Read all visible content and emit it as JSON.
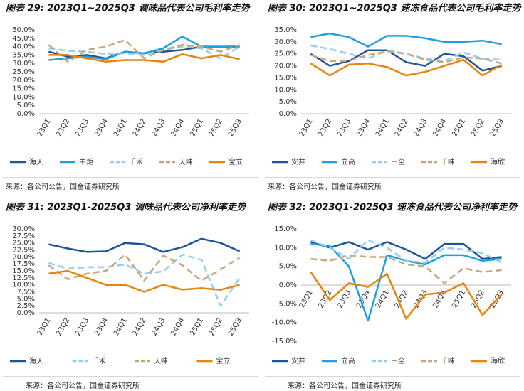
{
  "chart_data": [
    {
      "type": "line",
      "title": "图表 29: 2023Q1~2025Q3 调味品代表公司毛利率走势",
      "source": "来源：各公司公告，国金证券研究所",
      "categories": [
        "23Q1",
        "23Q2",
        "23Q3",
        "23Q4",
        "24Q1",
        "24Q2",
        "24Q3",
        "24Q4",
        "25Q1",
        "25Q2",
        "25Q3"
      ],
      "ylim": [
        0,
        50
      ],
      "yticks": [
        {
          "value": 0,
          "label": "0.0%"
        },
        {
          "value": 5,
          "label": "5.0%"
        },
        {
          "value": 10,
          "label": "10.0%"
        },
        {
          "value": 15,
          "label": "15.0%"
        },
        {
          "value": 20,
          "label": "20.0%"
        },
        {
          "value": 25,
          "label": "25.0%"
        },
        {
          "value": 30,
          "label": "30.0%"
        },
        {
          "value": 35,
          "label": "35.0%"
        },
        {
          "value": 40,
          "label": "40.0%"
        },
        {
          "value": 45,
          "label": "45.0%"
        },
        {
          "value": 50,
          "label": "50.0%"
        }
      ],
      "legend": "bottom",
      "series": [
        {
          "name": "海天",
          "color": "#1f5597",
          "dashed": false,
          "values": [
            37,
            34,
            35,
            33,
            37,
            36,
            37,
            38,
            40,
            40,
            40
          ]
        },
        {
          "name": "中炬",
          "color": "#1ea0e0",
          "dashed": false,
          "values": [
            32,
            33,
            34,
            32.5,
            37,
            36,
            39,
            46,
            40,
            40,
            39.5
          ]
        },
        {
          "name": "千禾",
          "color": "#8fd0f0",
          "dashed": true,
          "values": [
            39,
            37.5,
            37,
            35.5,
            36,
            35,
            38,
            40,
            39,
            33,
            40
          ]
        },
        {
          "name": "天味",
          "color": "#c8a878",
          "dashed": true,
          "values": [
            41,
            31,
            38,
            40,
            44,
            33,
            38,
            41,
            40,
            37,
            41
          ]
        },
        {
          "name": "宝立",
          "color": "#e8840c",
          "dashed": false,
          "values": [
            35,
            35,
            33,
            31,
            32,
            32,
            31,
            35.5,
            33,
            35,
            32.5
          ]
        }
      ]
    },
    {
      "type": "line",
      "title": "图表 30: 2023Q1~2025Q3 速冻食品代表公司毛利率走势",
      "source": "来源：各公司公告，国金证券研究所",
      "categories": [
        "23Q1",
        "23Q2",
        "23Q3",
        "23Q4",
        "24Q1",
        "24Q2",
        "24Q3",
        "24Q4",
        "25Q1",
        "25Q2",
        "25Q3"
      ],
      "ylim": [
        0,
        35
      ],
      "yticks": [
        {
          "value": 0,
          "label": "0.0%"
        },
        {
          "value": 5,
          "label": "5.0%"
        },
        {
          "value": 10,
          "label": "10.0%"
        },
        {
          "value": 15,
          "label": "15.0%"
        },
        {
          "value": 20,
          "label": "20.0%"
        },
        {
          "value": 25,
          "label": "25.0%"
        },
        {
          "value": 30,
          "label": "30.0%"
        },
        {
          "value": 35,
          "label": "35.0%"
        }
      ],
      "legend": "bottom",
      "series": [
        {
          "name": "安井",
          "color": "#1f5597",
          "dashed": false,
          "values": [
            25,
            20,
            22,
            26.5,
            26.5,
            21.5,
            20,
            25,
            24,
            18,
            20
          ]
        },
        {
          "name": "立高",
          "color": "#1ea0e0",
          "dashed": false,
          "values": [
            32,
            33.5,
            32,
            28,
            32.5,
            32.5,
            31.5,
            30,
            30,
            30.5,
            29
          ]
        },
        {
          "name": "三全",
          "color": "#8fd0f0",
          "dashed": true,
          "values": [
            28.5,
            27,
            25,
            23,
            26.5,
            25,
            23,
            22,
            25.5,
            23,
            22.5
          ]
        },
        {
          "name": "千味",
          "color": "#c8a878",
          "dashed": true,
          "values": [
            24.5,
            22,
            22,
            24.5,
            26,
            25,
            22.5,
            21.5,
            23.5,
            23,
            21
          ]
        },
        {
          "name": "海欣",
          "color": "#e8840c",
          "dashed": false,
          "values": [
            21,
            16,
            20.5,
            21,
            19.5,
            16,
            17.5,
            20,
            22.5,
            16,
            20.5
          ]
        }
      ]
    },
    {
      "type": "line",
      "title": "图表 31: 2023Q1-2025Q3 调味品代表公司净利率走势",
      "source": "来源：各公司公告，国金证券研究所",
      "categories": [
        "23Q1",
        "23Q2",
        "23Q3",
        "23Q4",
        "24Q1",
        "24Q2",
        "24Q3",
        "24Q4",
        "25Q1",
        "25Q2",
        "25Q3"
      ],
      "ylim": [
        0,
        30
      ],
      "yticks": [
        {
          "value": 0,
          "label": "0.0%"
        },
        {
          "value": 2.5,
          "label": "2.5%"
        },
        {
          "value": 5,
          "label": "5.0%"
        },
        {
          "value": 7.5,
          "label": "7.5%"
        },
        {
          "value": 10,
          "label": "10.0%"
        },
        {
          "value": 12.5,
          "label": "12.5%"
        },
        {
          "value": 15,
          "label": "15.0%"
        },
        {
          "value": 17.5,
          "label": "17.5%"
        },
        {
          "value": 20,
          "label": "20.0%"
        },
        {
          "value": 22.5,
          "label": "22.5%"
        },
        {
          "value": 25,
          "label": "25.0%"
        },
        {
          "value": 27.5,
          "label": "27.5%"
        },
        {
          "value": 30,
          "label": "30.0%"
        }
      ],
      "legend": "bottom",
      "series": [
        {
          "name": "海天",
          "color": "#1f5597",
          "dashed": false,
          "values": [
            24.5,
            23,
            21.8,
            22,
            25,
            24.5,
            21.8,
            23.5,
            26.5,
            25,
            22
          ]
        },
        {
          "name": "千禾",
          "color": "#8fd0f0",
          "dashed": true,
          "values": [
            17.8,
            15.8,
            16.3,
            16.3,
            17.3,
            14,
            14.8,
            20.8,
            19,
            2.5,
            12.5
          ]
        },
        {
          "name": "天味",
          "color": "#c8a878",
          "dashed": true,
          "values": [
            17,
            12,
            14,
            15,
            20.8,
            11.5,
            20.5,
            17,
            11.5,
            15.5,
            19.7
          ]
        },
        {
          "name": "宝立",
          "color": "#e8840c",
          "dashed": false,
          "values": [
            14,
            15,
            12.5,
            10,
            10,
            7.5,
            10,
            8.3,
            8.8,
            8.2,
            10
          ]
        }
      ]
    },
    {
      "type": "line",
      "title": "图表 32: 2023Q1-2025Q3 速冻食品代表公司净利率走势",
      "source": "来源：各公司公告，国金证券研究所",
      "categories": [
        "23Q1",
        "23Q2",
        "23Q3",
        "23Q4",
        "24Q1",
        "24Q2",
        "24Q3",
        "24Q4",
        "25Q1",
        "25Q2",
        "25Q3"
      ],
      "ylim": [
        -15,
        15
      ],
      "yticks": [
        {
          "value": -15,
          "label": "-15.0%"
        },
        {
          "value": -10,
          "label": "-10.0%"
        },
        {
          "value": -5,
          "label": "-5.0%"
        },
        {
          "value": 0,
          "label": "0.0%"
        },
        {
          "value": 5,
          "label": "5.0%"
        },
        {
          "value": 10,
          "label": "10.0%"
        },
        {
          "value": 15,
          "label": "15.0%"
        }
      ],
      "legend": "bottom",
      "series": [
        {
          "name": "安井",
          "color": "#1f5597",
          "dashed": false,
          "values": [
            11.5,
            10,
            11.5,
            9.5,
            11.5,
            9.5,
            7,
            11,
            11,
            7,
            7.5
          ]
        },
        {
          "name": "立高",
          "color": "#1ea0e0",
          "dashed": false,
          "values": [
            11,
            10.5,
            5,
            -9.5,
            8,
            6.5,
            5.5,
            8,
            8,
            6.5,
            7
          ]
        },
        {
          "name": "三全",
          "color": "#8fd0f0",
          "dashed": true,
          "values": [
            12,
            10,
            7,
            12,
            10,
            6.5,
            6,
            10,
            9.5,
            8.5,
            6
          ]
        },
        {
          "name": "千味",
          "color": "#c8a878",
          "dashed": true,
          "values": [
            7,
            6.5,
            8,
            7.5,
            7.5,
            5.5,
            5,
            0.5,
            4.5,
            3.5,
            4
          ]
        },
        {
          "name": "海欣",
          "color": "#e8840c",
          "dashed": false,
          "values": [
            3.5,
            -4,
            0.5,
            -0.5,
            3,
            -9,
            -2.5,
            -2,
            0.5,
            -8,
            -2.5
          ]
        }
      ]
    }
  ]
}
